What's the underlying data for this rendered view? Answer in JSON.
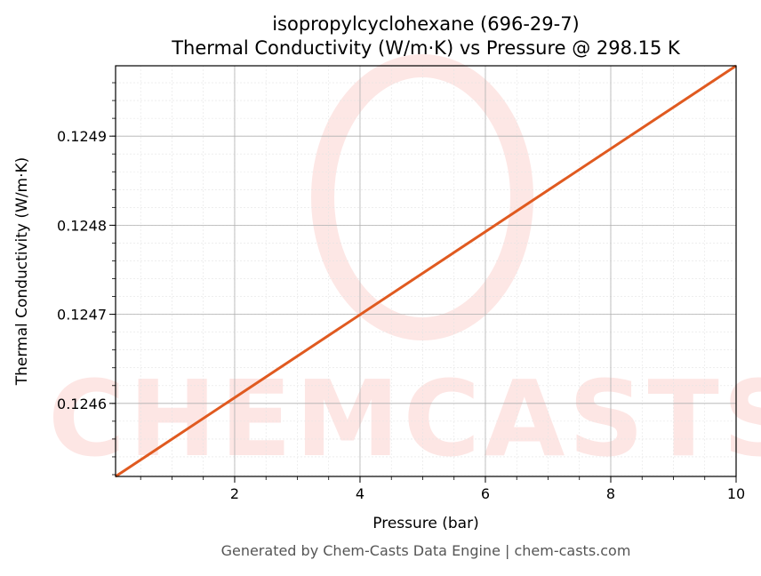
{
  "chart_data": {
    "type": "line",
    "title": "isopropylcyclohexane (696-29-7)",
    "subtitle": "Thermal Conductivity (W/m·K) vs Pressure @ 298.15 K",
    "xlabel": "Pressure (bar)",
    "ylabel": "Thermal Conductivity (W/m·K)",
    "xlim": [
      0.1,
      10
    ],
    "ylim": [
      0.124518,
      0.124979
    ],
    "xticks": [
      2,
      4,
      6,
      8,
      10
    ],
    "xtick_labels": [
      "2",
      "4",
      "6",
      "8",
      "10"
    ],
    "yticks": [
      0.1246,
      0.1247,
      0.1248,
      0.1249
    ],
    "ytick_labels": [
      "0.1246",
      "0.1247",
      "0.1248",
      "0.1249"
    ],
    "grid": true,
    "series": [
      {
        "x": [
          0.1,
          10
        ],
        "y": [
          0.124518,
          0.124979
        ],
        "color": "#e05a20"
      }
    ],
    "watermark": "CHEMCASTS",
    "footer": "Generated by Chem-Casts Data Engine | chem-casts.com"
  }
}
